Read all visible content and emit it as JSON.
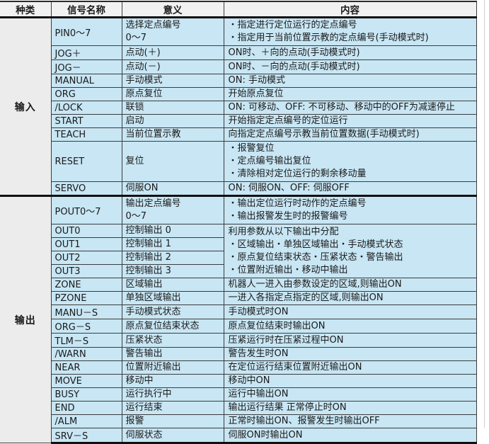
{
  "colors": {
    "cell_blue": "#c8e6f4",
    "group_gray": "#ececec",
    "header_bg": "#f1f1f1",
    "border_dark": "#101010",
    "border_thin": "#3c3c3c"
  },
  "table": {
    "columns": [
      "种类",
      "信号名称",
      "意义",
      "内容"
    ],
    "groups": [
      {
        "label": "输入",
        "rows": [
          {
            "signal": "PIN0～7",
            "meaning": [
              "选择定点编号",
              "0～7"
            ],
            "content": [
              "・指定进行定位运行的定点编号",
              "・指定用于当前位置示教的定点编号(手动模式时)"
            ]
          },
          {
            "signal": "JOG＋",
            "meaning": [
              "点动(＋)"
            ],
            "content": [
              "ON时、＋向的点动(手动模式时)"
            ]
          },
          {
            "signal": "JOG－",
            "meaning": [
              "点动(－)"
            ],
            "content": [
              "ON时、－向的点动(手动模式时)"
            ]
          },
          {
            "signal": "MANUAL",
            "meaning": [
              "手动模式"
            ],
            "content": [
              "ON: 手动模式"
            ]
          },
          {
            "signal": "ORG",
            "meaning": [
              "原点复位"
            ],
            "content": [
              "开始原点复位"
            ]
          },
          {
            "signal": "/LOCK",
            "meaning": [
              "联锁"
            ],
            "content": [
              "ON: 可移动、OFF: 不可移动、移动中的OFF为减速停止"
            ]
          },
          {
            "signal": "START",
            "meaning": [
              "启动"
            ],
            "content": [
              "开始指定定点编号的定位运行"
            ]
          },
          {
            "signal": "TEACH",
            "meaning": [
              "当前位置示教"
            ],
            "content": [
              "向指定定点编号示教当前位置数据(手动模式时)"
            ]
          },
          {
            "signal": "RESET",
            "meaning": [
              "复位"
            ],
            "content": [
              "・报警复位",
              "・定点编号输出复位",
              "・清除相对定位运行的剩余移动量"
            ]
          },
          {
            "signal": "SERVO",
            "meaning": [
              "伺服ON"
            ],
            "content": [
              "ON: 伺服ON、OFF: 伺服OFF"
            ]
          }
        ]
      },
      {
        "label": "输出",
        "rows": [
          {
            "signal": "POUT0～7",
            "meaning": [
              "输出定点编号",
              "0～7"
            ],
            "content": [
              "・输出定位运行时动作的定点编号",
              "・输出报警发生时的报警编号"
            ]
          },
          {
            "signal": "OUT0",
            "meaning": [
              "控制输出 0"
            ],
            "content": [
              "利用参数从以下输出中分配",
              "・区域输出・单独区域输出・手动模式状态",
              "・原点复位结束状态・压紧状态・警告输出",
              "・位置附近输出・移动中输出"
            ],
            "content_rowspan": 4
          },
          {
            "signal": "OUT1",
            "meaning": [
              "控制输出 1"
            ],
            "content": null
          },
          {
            "signal": "OUT2",
            "meaning": [
              "控制输出 2"
            ],
            "content": null
          },
          {
            "signal": "OUT3",
            "meaning": [
              "控制输出 3"
            ],
            "content": null
          },
          {
            "signal": "ZONE",
            "meaning": [
              "区域输出"
            ],
            "content": [
              "机器人一进入由参数设定的区域,则输出ON"
            ]
          },
          {
            "signal": "PZONE",
            "meaning": [
              "单独区域输出"
            ],
            "content": [
              "一进入各指定点指定的区域,则输出ON"
            ]
          },
          {
            "signal": "MANU－S",
            "meaning": [
              "手动模式状态"
            ],
            "content": [
              "手动模式时ON"
            ]
          },
          {
            "signal": "ORG－S",
            "meaning": [
              "原点复位结束状态"
            ],
            "content": [
              "原点复位结束时输出ON"
            ]
          },
          {
            "signal": "TLM－S",
            "meaning": [
              "压紧状态"
            ],
            "content": [
              "压紧运行时在压紧过程中ON"
            ]
          },
          {
            "signal": "/WARN",
            "meaning": [
              "警告输出"
            ],
            "content": [
              "警告发生时ON"
            ]
          },
          {
            "signal": "NEAR",
            "meaning": [
              "位置附近输出"
            ],
            "content": [
              "在定位运行结束位置附近输出ON"
            ]
          },
          {
            "signal": "MOVE",
            "meaning": [
              "移动中"
            ],
            "content": [
              "移动中ON"
            ]
          },
          {
            "signal": "BUSY",
            "meaning": [
              "运行执行中"
            ],
            "content": [
              "运行中输出ON"
            ]
          },
          {
            "signal": "END",
            "meaning": [
              "运行结束"
            ],
            "content": [
              "输出运行结果 正常停止时ON"
            ]
          },
          {
            "signal": "/ALM",
            "meaning": [
              "报警"
            ],
            "content": [
              "正常时输出ON、报警发生时输出OFF"
            ]
          },
          {
            "signal": "SRV－S",
            "meaning": [
              "伺服状态"
            ],
            "content": [
              "伺服ON时输出ON"
            ]
          }
        ]
      }
    ]
  }
}
